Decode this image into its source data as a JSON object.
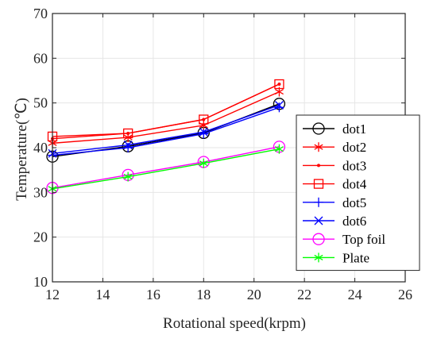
{
  "chart_data": {
    "type": "line",
    "xlabel": "Rotational speed(krpm)",
    "ylabel": "Temperature(℃)",
    "xlim": [
      12,
      26
    ],
    "ylim": [
      10,
      70
    ],
    "xticks": [
      12,
      14,
      16,
      18,
      20,
      22,
      24,
      26
    ],
    "yticks": [
      10,
      20,
      30,
      40,
      50,
      60,
      70
    ],
    "grid": true,
    "legend_position": "bottom-right",
    "x": [
      12,
      15,
      18,
      21
    ],
    "series": [
      {
        "name": "dot1",
        "color": "#000000",
        "marker": "circle",
        "values": [
          38.0,
          40.3,
          43.3,
          49.8
        ]
      },
      {
        "name": "dot2",
        "color": "#ff0000",
        "marker": "asterisk",
        "values": [
          41.0,
          42.3,
          45.0,
          52.5
        ]
      },
      {
        "name": "dot3",
        "color": "#ff0000",
        "marker": "dot",
        "values": [
          42.0,
          43.2,
          46.3,
          54.2
        ]
      },
      {
        "name": "dot4",
        "color": "#ff0000",
        "marker": "square",
        "values": [
          42.5,
          43.2,
          46.3,
          54.2
        ]
      },
      {
        "name": "dot5",
        "color": "#0000ff",
        "marker": "plus",
        "values": [
          38.3,
          40.0,
          43.1,
          49.0
        ]
      },
      {
        "name": "dot6",
        "color": "#0000ff",
        "marker": "x",
        "values": [
          38.7,
          40.6,
          43.5,
          49.5
        ]
      },
      {
        "name": "Top foil",
        "color": "#ff00ff",
        "marker": "circle",
        "values": [
          31.0,
          33.9,
          36.8,
          40.2
        ]
      },
      {
        "name": "Plate",
        "color": "#00ff00",
        "marker": "asterisk",
        "values": [
          30.8,
          33.5,
          36.5,
          39.7
        ]
      }
    ]
  }
}
